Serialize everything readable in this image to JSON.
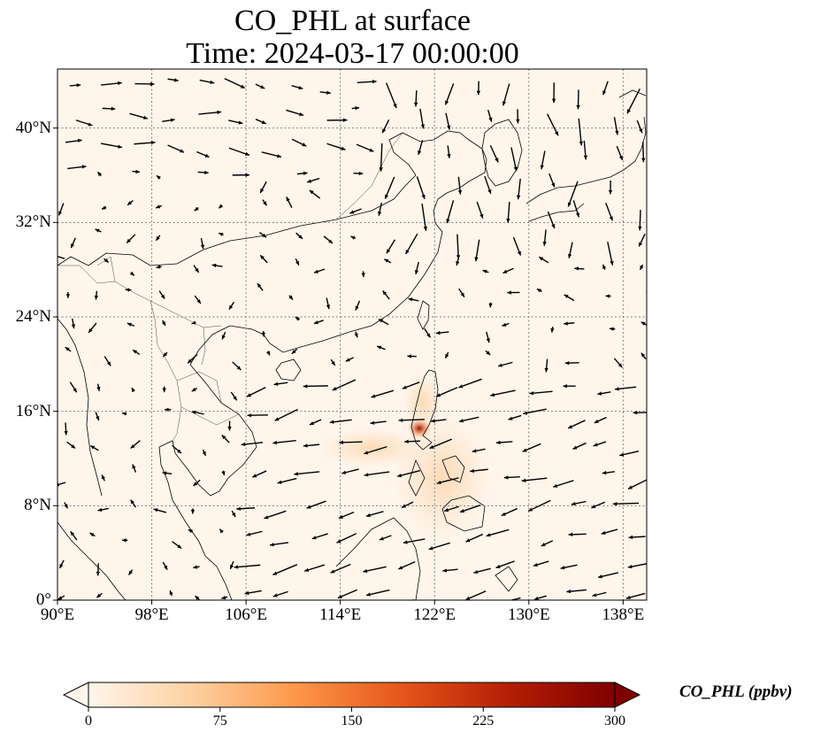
{
  "title": {
    "line1": "CO_PHL at surface",
    "line2": "Time: 2024-03-17 00:00:00"
  },
  "map": {
    "extent": {
      "lon": [
        90,
        140
      ],
      "lat": [
        0,
        45
      ]
    },
    "x_ticks": [
      "90°E",
      "98°E",
      "106°E",
      "114°E",
      "122°E",
      "130°E",
      "138°E"
    ],
    "x_tick_values": [
      90,
      98,
      106,
      114,
      122,
      130,
      138
    ],
    "y_ticks": [
      "0°",
      "8°N",
      "16°N",
      "24°N",
      "32°N",
      "40°N"
    ],
    "y_tick_values": [
      0,
      8,
      16,
      24,
      32,
      40
    ],
    "gridlines": true,
    "background_color": "#fff5eb",
    "hotspot_color": "#8b1a0e"
  },
  "colorbar": {
    "label": "CO_PHL (ppbv)",
    "ticks": [
      "0",
      "75",
      "150",
      "225",
      "300"
    ],
    "tick_values": [
      0,
      75,
      150,
      225,
      300
    ],
    "range": [
      0,
      300
    ],
    "extend": "both",
    "colors": [
      "#fff5eb",
      "#fdd09f",
      "#fd9547",
      "#e5541a",
      "#b31e04",
      "#7f0000"
    ]
  }
}
